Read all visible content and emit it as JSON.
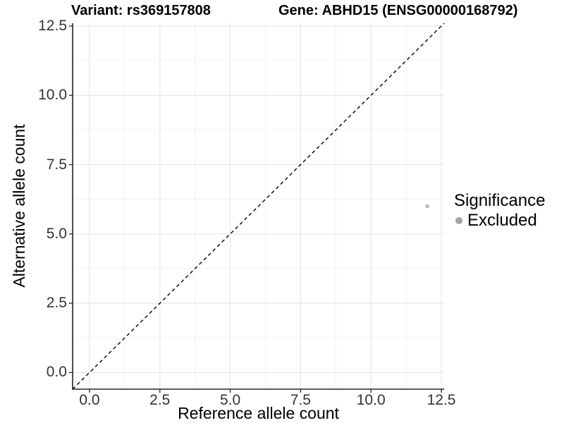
{
  "figure": {
    "title_left": "Variant: rs369157808",
    "title_right": "Gene: ABHD15 (ENSG00000168792)"
  },
  "chart_data": {
    "type": "scatter",
    "title_left": "Variant: rs369157808",
    "title_right": "Gene: ABHD15 (ENSG00000168792)",
    "xlabel": "Reference allele count",
    "ylabel": "Alternative allele count",
    "xlim": [
      -0.6,
      12.6
    ],
    "ylim": [
      -0.6,
      12.6
    ],
    "x_ticks": [
      0,
      2.5,
      5,
      7.5,
      10,
      12.5
    ],
    "y_ticks": [
      0,
      2.5,
      5,
      7.5,
      10,
      12.5
    ],
    "x_tick_labels": [
      "0.0",
      "2.5",
      "5.0",
      "7.5",
      "10.0",
      "12.5"
    ],
    "y_tick_labels": [
      "0.0",
      "2.5",
      "5.0",
      "7.5",
      "10.0",
      "12.5"
    ],
    "minor_ticks": [
      1.25,
      3.75,
      6.25,
      8.75,
      11.25
    ],
    "grid": "major+minor",
    "reference_line": {
      "type": "identity",
      "slope": 1,
      "intercept": 0,
      "style": "dashed",
      "color": "#000000"
    },
    "series": [
      {
        "name": "Excluded",
        "color": "#b9b9b9",
        "point_radius": 2.7,
        "points": [
          {
            "x": 12,
            "y": 6
          }
        ]
      }
    ],
    "legend": {
      "title": "Significance",
      "position": "right",
      "items": [
        {
          "label": "Excluded",
          "color": "#a3a3a3"
        }
      ]
    },
    "colors": {
      "background": "#ffffff",
      "grid_major": "#e7e7e7",
      "grid_minor": "#f2f2f2",
      "axis_line": "#222222",
      "tick_mark": "#333333",
      "tick_text": "#333333",
      "title_text": "#000000"
    }
  }
}
